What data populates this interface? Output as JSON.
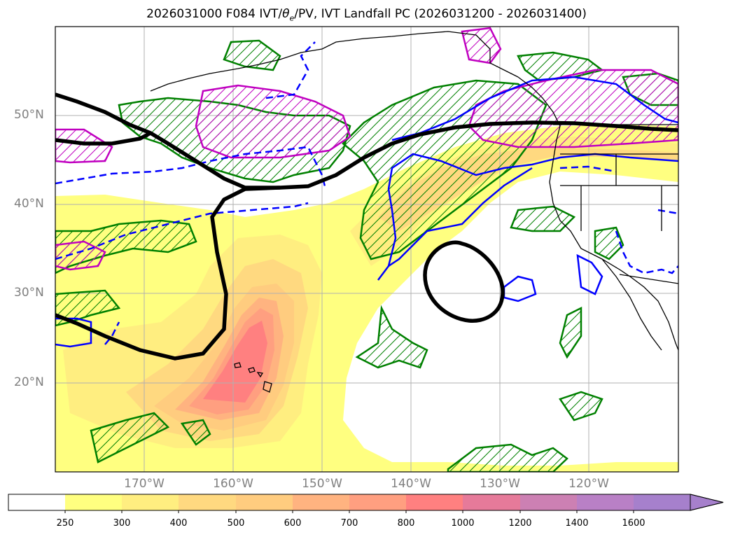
{
  "title": {
    "prefix": "2026031000 F084 IVT/",
    "theta": "θ",
    "theta_sub": "e",
    "suffix": "/PV, IVT Landfall PC (2026031200 - 2026031400)"
  },
  "map": {
    "lat_labels": [
      "50°N",
      "40°N",
      "30°N",
      "20°N"
    ],
    "lon_labels": [
      "170°W",
      "160°W",
      "150°W",
      "140°W",
      "130°W",
      "120°W"
    ],
    "colors": {
      "pv_contour": "#000000",
      "theta_solid": "#0000ff",
      "theta_dashed": "#0000ff",
      "landfall_pc_green": "#008000",
      "landfall_pc_magenta": "#c000c0",
      "coastline": "#000000",
      "grid": "#b0b0b0"
    }
  },
  "colorbar": {
    "levels": [
      "250",
      "300",
      "400",
      "500",
      "600",
      "700",
      "800",
      "1000",
      "1200",
      "1400",
      "1600"
    ],
    "colors": [
      "#ffffff",
      "#ffff80",
      "#ffee80",
      "#ffd980",
      "#ffcc7f",
      "#ffb380",
      "#ff9f80",
      "#ff8080",
      "#e67a9a",
      "#cc80b3",
      "#b980c6",
      "#a680cc"
    ],
    "extend": "max"
  }
}
